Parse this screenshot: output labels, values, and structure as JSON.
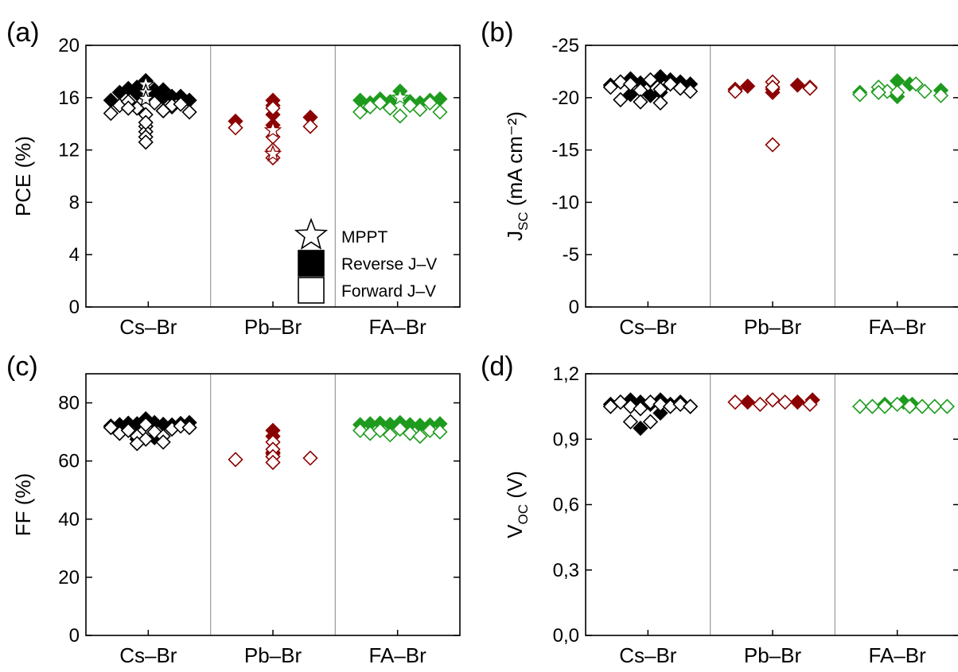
{
  "colors": {
    "Cs": "#000000",
    "Pb": "#8B0000",
    "FA": "#1E9B1E"
  },
  "legend": [
    {
      "marker": "star",
      "label": "MPPT"
    },
    {
      "marker": "filled-square",
      "label": "Reverse J–V"
    },
    {
      "marker": "open-square",
      "label": "Forward J–V"
    }
  ],
  "chart_data": [
    {
      "panel_label": "(a)",
      "type": "scatter",
      "ylabel": "PCE (%)",
      "ylabel_sub": "",
      "ylabel_tail": "",
      "categories": [
        "Cs–Br",
        "Pb–Br",
        "FA–Br"
      ],
      "ylim": [
        0,
        20
      ],
      "yticks": [
        "0",
        "4",
        "8",
        "12",
        "16",
        "20"
      ],
      "ytick_values": [
        0,
        4,
        8,
        12,
        16,
        20
      ],
      "series": [
        {
          "name": "Reverse J–V",
          "category": "Cs–Br",
          "color_key": "Cs",
          "fill": true,
          "x": [
            0.2,
            0.27,
            0.34,
            0.41,
            0.48,
            0.55,
            0.62,
            0.69,
            0.76,
            0.83,
            0.34,
            0.41,
            0.48,
            0.55,
            0.62,
            0.69
          ],
          "y": [
            15.8,
            16.4,
            16.7,
            16.8,
            17.3,
            16.6,
            16.6,
            16.1,
            16.1,
            15.8,
            15.6,
            16.3,
            16.1,
            16.5,
            16.0,
            15.3
          ]
        },
        {
          "name": "Forward J–V",
          "category": "Cs–Br",
          "color_key": "Cs",
          "fill": false,
          "x": [
            0.2,
            0.27,
            0.34,
            0.41,
            0.48,
            0.55,
            0.62,
            0.69,
            0.76,
            0.83,
            0.48,
            0.48,
            0.48,
            0.48,
            0.48,
            0.34,
            0.62
          ],
          "y": [
            14.8,
            15.4,
            15.7,
            15.2,
            14.7,
            15.6,
            15.0,
            15.4,
            15.5,
            14.9,
            13.8,
            13.4,
            13.0,
            12.6,
            14.1,
            15.2,
            15.0
          ]
        },
        {
          "name": "MPPT",
          "category": "Cs–Br",
          "color_key": "Cs",
          "marker": "star",
          "x": [
            0.48,
            0.48,
            0.48
          ],
          "y": [
            17.0,
            16.4,
            15.9
          ]
        },
        {
          "name": "Reverse J–V",
          "category": "Pb–Br",
          "color_key": "Pb",
          "fill": true,
          "x": [
            0.2,
            0.5,
            0.5,
            0.5,
            0.5,
            0.8
          ],
          "y": [
            14.2,
            15.8,
            15.4,
            14.7,
            13.9,
            14.5
          ]
        },
        {
          "name": "Forward J–V",
          "category": "Pb–Br",
          "color_key": "Pb",
          "fill": false,
          "x": [
            0.2,
            0.5,
            0.5,
            0.5,
            0.5,
            0.8
          ],
          "y": [
            13.7,
            15.2,
            13.0,
            12.0,
            11.4,
            13.8
          ]
        },
        {
          "name": "MPPT",
          "category": "Pb–Br",
          "color_key": "Pb",
          "marker": "star",
          "x": [
            0.5,
            0.5
          ],
          "y": [
            13.5,
            11.7
          ]
        },
        {
          "name": "Reverse J–V",
          "category": "FA–Br",
          "color_key": "FA",
          "fill": true,
          "x": [
            0.2,
            0.28,
            0.36,
            0.44,
            0.52,
            0.6,
            0.68,
            0.76,
            0.84
          ],
          "y": [
            15.8,
            15.6,
            15.9,
            15.7,
            16.5,
            15.7,
            15.6,
            15.8,
            15.9
          ]
        },
        {
          "name": "Forward J–V",
          "category": "FA–Br",
          "color_key": "FA",
          "fill": false,
          "x": [
            0.2,
            0.28,
            0.36,
            0.44,
            0.52,
            0.6,
            0.68,
            0.76,
            0.84
          ],
          "y": [
            14.9,
            15.3,
            15.6,
            15.2,
            14.6,
            15.4,
            15.1,
            15.6,
            14.9
          ]
        },
        {
          "name": "MPPT",
          "category": "FA–Br",
          "color_key": "FA",
          "marker": "star",
          "x": [
            0.52
          ],
          "y": [
            16.0
          ]
        }
      ]
    },
    {
      "panel_label": "(b)",
      "type": "scatter",
      "ylabel": "J",
      "ylabel_sub": "SC",
      "ylabel_tail": " (mA cm⁻²)",
      "categories": [
        "Cs–Br",
        "Pb–Br",
        "FA–Br"
      ],
      "ylim": [
        0,
        -25
      ],
      "yticks": [
        "0",
        "-5",
        "-10",
        "-15",
        "-20",
        "-25"
      ],
      "ytick_values": [
        0,
        -5,
        -10,
        -15,
        -20,
        -25
      ],
      "series": [
        {
          "name": "Reverse J–V",
          "category": "Cs–Br",
          "color_key": "Cs",
          "fill": true,
          "x": [
            0.2,
            0.28,
            0.36,
            0.44,
            0.52,
            0.6,
            0.68,
            0.76,
            0.84,
            0.36,
            0.52,
            0.6
          ],
          "y": [
            -21.2,
            -21.5,
            -21.8,
            -21.4,
            -21.6,
            -22.0,
            -21.7,
            -21.5,
            -21.3,
            -20.3,
            -20.2,
            -20.5
          ]
        },
        {
          "name": "Forward J–V",
          "category": "Cs–Br",
          "color_key": "Cs",
          "fill": false,
          "x": [
            0.2,
            0.28,
            0.36,
            0.44,
            0.52,
            0.6,
            0.68,
            0.76,
            0.84,
            0.28,
            0.44,
            0.6
          ],
          "y": [
            -21.0,
            -21.5,
            -21.3,
            -20.7,
            -21.7,
            -20.8,
            -21.3,
            -20.9,
            -20.6,
            -19.8,
            -19.6,
            -19.5
          ]
        },
        {
          "name": "Reverse J–V",
          "category": "Pb–Br",
          "color_key": "Pb",
          "fill": true,
          "x": [
            0.2,
            0.3,
            0.5,
            0.5,
            0.7,
            0.8
          ],
          "y": [
            -20.8,
            -21.1,
            -20.8,
            -20.5,
            -21.2,
            -21.0
          ]
        },
        {
          "name": "Forward J–V",
          "category": "Pb–Br",
          "color_key": "Pb",
          "fill": false,
          "x": [
            0.2,
            0.5,
            0.5,
            0.8,
            0.5
          ],
          "y": [
            -20.6,
            -21.5,
            -21.0,
            -20.9,
            -15.5
          ]
        },
        {
          "name": "Reverse J–V",
          "category": "FA–Br",
          "color_key": "FA",
          "fill": true,
          "x": [
            0.2,
            0.35,
            0.5,
            0.6,
            0.5,
            0.85
          ],
          "y": [
            -20.5,
            -20.6,
            -21.6,
            -21.3,
            -20.1,
            -20.7
          ]
        },
        {
          "name": "Forward J–V",
          "category": "FA–Br",
          "color_key": "FA",
          "fill": false,
          "x": [
            0.2,
            0.35,
            0.42,
            0.5,
            0.65,
            0.72,
            0.85,
            0.35
          ],
          "y": [
            -20.3,
            -21.0,
            -20.6,
            -20.5,
            -21.3,
            -20.6,
            -20.2,
            -20.5
          ]
        }
      ]
    },
    {
      "panel_label": "(c)",
      "type": "scatter",
      "ylabel": "FF (%)",
      "ylabel_sub": "",
      "ylabel_tail": "",
      "categories": [
        "Cs–Br",
        "Pb–Br",
        "FA–Br"
      ],
      "ylim": [
        0,
        90
      ],
      "yticks": [
        "0",
        "20",
        "40",
        "60",
        "80"
      ],
      "ytick_values": [
        0,
        20,
        40,
        60,
        80
      ],
      "series": [
        {
          "name": "Reverse J–V",
          "category": "Cs–Br",
          "color_key": "Cs",
          "fill": true,
          "x": [
            0.2,
            0.27,
            0.34,
            0.41,
            0.48,
            0.55,
            0.62,
            0.69,
            0.76,
            0.83,
            0.41,
            0.55
          ],
          "y": [
            72.0,
            72.5,
            73.0,
            72.8,
            74.5,
            73.2,
            72.6,
            72.4,
            72.9,
            73.2,
            67.5,
            68.0
          ]
        },
        {
          "name": "Forward J–V",
          "category": "Cs–Br",
          "color_key": "Cs",
          "fill": false,
          "x": [
            0.2,
            0.27,
            0.34,
            0.41,
            0.48,
            0.55,
            0.62,
            0.69,
            0.76,
            0.83,
            0.48,
            0.62,
            0.41
          ],
          "y": [
            71.5,
            69.5,
            70.5,
            68.5,
            72.5,
            70.0,
            68.5,
            71.0,
            72.0,
            71.5,
            67.5,
            66.5,
            66.0
          ]
        },
        {
          "name": "Reverse J–V",
          "category": "Pb–Br",
          "color_key": "Pb",
          "fill": true,
          "x": [
            0.5,
            0.5,
            0.5,
            0.5,
            0.5
          ],
          "y": [
            70.5,
            68.5,
            63.0,
            62.5,
            61.5
          ]
        },
        {
          "name": "Forward J–V",
          "category": "Pb–Br",
          "color_key": "Pb",
          "fill": false,
          "x": [
            0.2,
            0.5,
            0.5,
            0.5,
            0.5,
            0.8
          ],
          "y": [
            60.5,
            66.5,
            64.0,
            61.5,
            59.5,
            61.0
          ]
        },
        {
          "name": "Reverse J–V",
          "category": "FA–Br",
          "color_key": "FA",
          "fill": true,
          "x": [
            0.2,
            0.28,
            0.36,
            0.44,
            0.52,
            0.6,
            0.68,
            0.76,
            0.84
          ],
          "y": [
            72.5,
            72.8,
            73.0,
            72.6,
            73.2,
            72.5,
            72.3,
            72.4,
            72.8
          ]
        },
        {
          "name": "Forward J–V",
          "category": "FA–Br",
          "color_key": "FA",
          "fill": false,
          "x": [
            0.2,
            0.28,
            0.36,
            0.44,
            0.52,
            0.6,
            0.68,
            0.76,
            0.84
          ],
          "y": [
            70.5,
            69.5,
            70.5,
            69.0,
            71.0,
            69.5,
            68.5,
            70.5,
            70.0
          ]
        }
      ]
    },
    {
      "panel_label": "(d)",
      "type": "scatter",
      "ylabel": "V",
      "ylabel_sub": "OC",
      "ylabel_tail": " (V)",
      "categories": [
        "Cs–Br",
        "Pb–Br",
        "FA–Br"
      ],
      "ylim": [
        0,
        1.2
      ],
      "yticks": [
        "0,0",
        "0,3",
        "0,6",
        "0,9",
        "1,2"
      ],
      "ytick_values": [
        0,
        0.3,
        0.6,
        0.9,
        1.2
      ],
      "series": [
        {
          "name": "Reverse J–V",
          "category": "Cs–Br",
          "color_key": "Cs",
          "fill": true,
          "x": [
            0.2,
            0.28,
            0.36,
            0.44,
            0.52,
            0.6,
            0.68,
            0.76,
            0.84,
            0.44,
            0.6
          ],
          "y": [
            1.06,
            1.07,
            1.08,
            1.07,
            1.06,
            1.08,
            1.06,
            1.07,
            1.05,
            0.95,
            1.02
          ]
        },
        {
          "name": "Forward J–V",
          "category": "Cs–Br",
          "color_key": "Cs",
          "fill": false,
          "x": [
            0.2,
            0.28,
            0.36,
            0.44,
            0.52,
            0.6,
            0.68,
            0.76,
            0.84,
            0.36,
            0.52
          ],
          "y": [
            1.05,
            1.07,
            1.05,
            1.04,
            1.07,
            1.06,
            1.05,
            1.06,
            1.05,
            0.98,
            0.98
          ]
        },
        {
          "name": "Reverse J–V",
          "category": "Pb–Br",
          "color_key": "Pb",
          "fill": true,
          "x": [
            0.3,
            0.5,
            0.7,
            0.82
          ],
          "y": [
            1.07,
            1.08,
            1.07,
            1.08
          ]
        },
        {
          "name": "Forward J–V",
          "category": "Pb–Br",
          "color_key": "Pb",
          "fill": false,
          "x": [
            0.2,
            0.4,
            0.5,
            0.6,
            0.8
          ],
          "y": [
            1.07,
            1.06,
            1.08,
            1.07,
            1.06
          ]
        },
        {
          "name": "Reverse J–V",
          "category": "FA–Br",
          "color_key": "FA",
          "fill": true,
          "x": [
            0.4,
            0.55,
            0.62
          ],
          "y": [
            1.06,
            1.07,
            1.06
          ]
        },
        {
          "name": "Forward J–V",
          "category": "FA–Br",
          "color_key": "FA",
          "fill": false,
          "x": [
            0.2,
            0.3,
            0.4,
            0.5,
            0.6,
            0.7,
            0.8,
            0.9
          ],
          "y": [
            1.05,
            1.05,
            1.05,
            1.06,
            1.05,
            1.05,
            1.05,
            1.05
          ]
        }
      ]
    }
  ]
}
